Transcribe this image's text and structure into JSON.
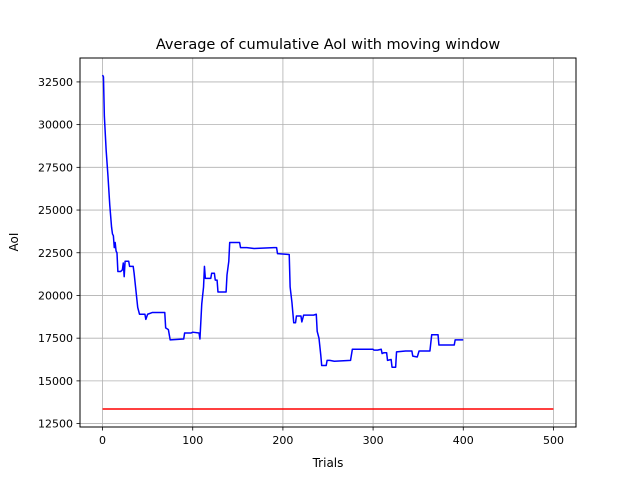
{
  "chart_data": {
    "type": "line",
    "title": "Average of cumulative AoI with moving window",
    "xlabel": "Trials",
    "ylabel": "AoI",
    "xlim": [
      -25,
      525
    ],
    "ylim": [
      12300,
      33900
    ],
    "x_ticks": [
      0,
      100,
      200,
      300,
      400,
      500
    ],
    "x_tick_labels": [
      "0",
      "100",
      "200",
      "300",
      "400",
      "500"
    ],
    "y_ticks": [
      12500,
      15000,
      17500,
      20000,
      22500,
      25000,
      27500,
      30000,
      32500
    ],
    "y_tick_labels": [
      "12500",
      "15000",
      "17500",
      "20000",
      "22500",
      "25000",
      "27500",
      "30000",
      "32500"
    ],
    "grid": true,
    "series": [
      {
        "color": "#0000ff",
        "points": [
          [
            0,
            32900
          ],
          [
            1,
            32800
          ],
          [
            2,
            30500
          ],
          [
            4,
            28500
          ],
          [
            6,
            27000
          ],
          [
            8,
            25300
          ],
          [
            10,
            24000
          ],
          [
            11,
            23600
          ],
          [
            12,
            23500
          ],
          [
            13,
            22800
          ],
          [
            14,
            23100
          ],
          [
            15,
            22600
          ],
          [
            16,
            22500
          ],
          [
            17,
            21400
          ],
          [
            20,
            21400
          ],
          [
            22,
            21500
          ],
          [
            23,
            21900
          ],
          [
            24,
            21100
          ],
          [
            25,
            22000
          ],
          [
            29,
            22000
          ],
          [
            30,
            21700
          ],
          [
            34,
            21700
          ],
          [
            35,
            21300
          ],
          [
            37,
            20300
          ],
          [
            39,
            19300
          ],
          [
            41,
            18900
          ],
          [
            47,
            18900
          ],
          [
            48,
            18600
          ],
          [
            50,
            18900
          ],
          [
            55,
            19000
          ],
          [
            69,
            19000
          ],
          [
            70,
            18100
          ],
          [
            73,
            18000
          ],
          [
            75,
            17400
          ],
          [
            90,
            17450
          ],
          [
            91,
            17800
          ],
          [
            98,
            17800
          ],
          [
            100,
            17850
          ],
          [
            107,
            17800
          ],
          [
            108,
            17450
          ],
          [
            110,
            19500
          ],
          [
            112,
            20500
          ],
          [
            113,
            21700
          ],
          [
            114,
            21000
          ],
          [
            120,
            21000
          ],
          [
            121,
            21300
          ],
          [
            124,
            21300
          ],
          [
            125,
            20900
          ],
          [
            127,
            20900
          ],
          [
            128,
            20200
          ],
          [
            137,
            20200
          ],
          [
            138,
            21200
          ],
          [
            140,
            22000
          ],
          [
            141,
            23100
          ],
          [
            147,
            23100
          ],
          [
            152,
            23100
          ],
          [
            153,
            22800
          ],
          [
            160,
            22800
          ],
          [
            168,
            22750
          ],
          [
            190,
            22800
          ],
          [
            193,
            22800
          ],
          [
            194,
            22450
          ],
          [
            207,
            22400
          ],
          [
            208,
            20500
          ],
          [
            210,
            19600
          ],
          [
            212,
            18400
          ],
          [
            214,
            18400
          ],
          [
            215,
            18800
          ],
          [
            220,
            18800
          ],
          [
            221,
            18450
          ],
          [
            223,
            18850
          ],
          [
            234,
            18850
          ],
          [
            237,
            18900
          ],
          [
            238,
            17900
          ],
          [
            240,
            17500
          ],
          [
            242,
            16500
          ],
          [
            243,
            15900
          ],
          [
            248,
            15900
          ],
          [
            249,
            16200
          ],
          [
            252,
            16200
          ],
          [
            257,
            16150
          ],
          [
            275,
            16200
          ],
          [
            277,
            16850
          ],
          [
            283,
            16850
          ],
          [
            300,
            16850
          ],
          [
            301,
            16800
          ],
          [
            305,
            16800
          ],
          [
            309,
            16850
          ],
          [
            310,
            16600
          ],
          [
            312,
            16650
          ],
          [
            315,
            16650
          ],
          [
            316,
            16200
          ],
          [
            320,
            16250
          ],
          [
            321,
            15800
          ],
          [
            325,
            15800
          ],
          [
            326,
            16700
          ],
          [
            336,
            16750
          ],
          [
            343,
            16750
          ],
          [
            344,
            16450
          ],
          [
            349,
            16400
          ],
          [
            351,
            16750
          ],
          [
            363,
            16750
          ],
          [
            365,
            17700
          ],
          [
            372,
            17700
          ],
          [
            373,
            17100
          ],
          [
            390,
            17100
          ],
          [
            391,
            17400
          ],
          [
            400,
            17400
          ]
        ]
      },
      {
        "color": "#ff0000",
        "points": [
          [
            0,
            13350
          ],
          [
            500,
            13350
          ]
        ]
      }
    ]
  }
}
